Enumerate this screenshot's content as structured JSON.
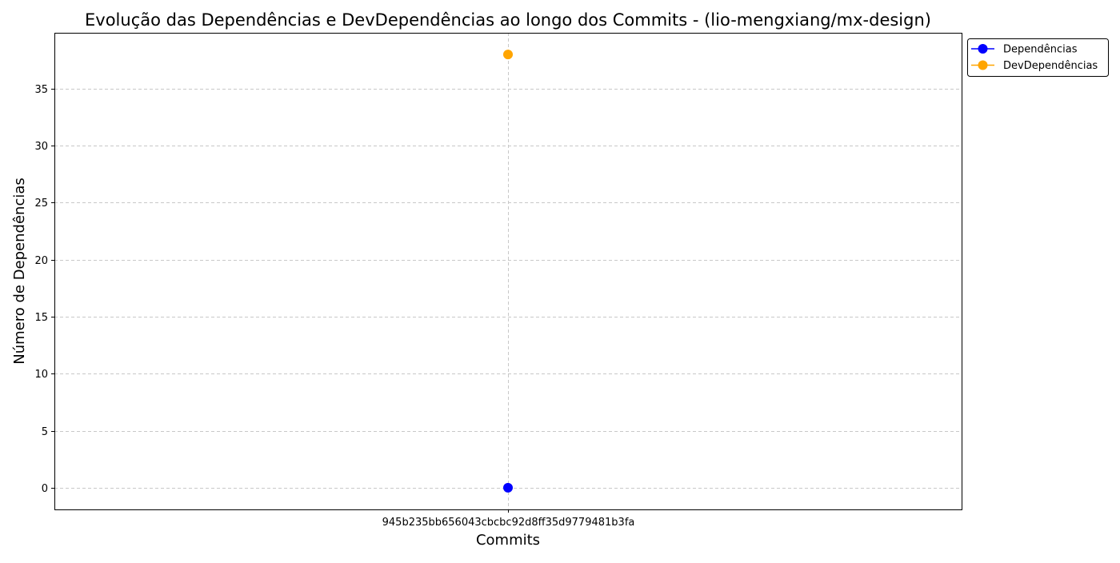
{
  "chart_data": {
    "type": "line",
    "title": "Evolução das Dependências e DevDependências ao longo dos Commits - (lio-mengxiang/mx-design)",
    "xlabel": "Commits",
    "ylabel": "Número de Dependências",
    "categories": [
      "945b235bb656043cbcbc92d8ff35d9779481b3fa"
    ],
    "series": [
      {
        "name": "Dependências",
        "values": [
          0
        ],
        "color": "#0000ff"
      },
      {
        "name": "DevDependências",
        "values": [
          38
        ],
        "color": "#ffa500"
      }
    ],
    "ylim": [
      -1.9,
      39.9
    ],
    "yticks": [
      0,
      5,
      10,
      15,
      20,
      25,
      30,
      35
    ],
    "grid": true,
    "grid_style": "dashed",
    "legend_position": "outside-top-right"
  }
}
